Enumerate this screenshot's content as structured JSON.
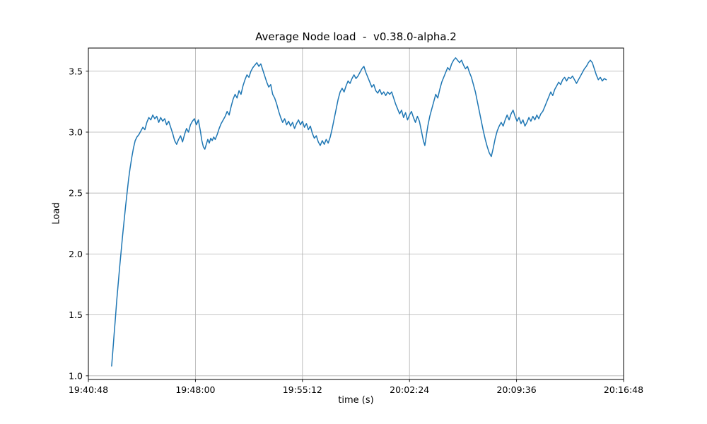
{
  "chart_data": {
    "type": "line",
    "title": "Average Node load  -  v0.38.0-alpha.2",
    "xlabel": "time (s)",
    "ylabel": "Load",
    "xlim": [
      0,
      2160
    ],
    "ylim": [
      0.97,
      3.69
    ],
    "grid": true,
    "x_ticks": [
      {
        "label": "19:40:48",
        "seconds": 0
      },
      {
        "label": "19:48:00",
        "seconds": 432
      },
      {
        "label": "19:55:12",
        "seconds": 864
      },
      {
        "label": "20:02:24",
        "seconds": 1296
      },
      {
        "label": "20:09:36",
        "seconds": 1728
      },
      {
        "label": "20:16:48",
        "seconds": 2160
      }
    ],
    "y_ticks": [
      1.0,
      1.5,
      2.0,
      2.5,
      3.0,
      3.5
    ],
    "colors": {
      "line": "#1f77b4",
      "grid": "#b0b0b0",
      "axis": "#000000",
      "background": "#ffffff"
    },
    "series": [
      {
        "name": "average-node-load",
        "color": "#1f77b4",
        "points": [
          [
            94,
            1.08
          ],
          [
            99,
            1.21
          ],
          [
            104,
            1.34
          ],
          [
            109,
            1.47
          ],
          [
            114,
            1.61
          ],
          [
            120,
            1.75
          ],
          [
            126,
            1.89
          ],
          [
            132,
            2.02
          ],
          [
            138,
            2.15
          ],
          [
            144,
            2.27
          ],
          [
            150,
            2.39
          ],
          [
            156,
            2.5
          ],
          [
            162,
            2.61
          ],
          [
            168,
            2.7
          ],
          [
            175,
            2.79
          ],
          [
            182,
            2.87
          ],
          [
            189,
            2.93
          ],
          [
            196,
            2.96
          ],
          [
            204,
            2.98
          ],
          [
            212,
            3.01
          ],
          [
            220,
            3.04
          ],
          [
            228,
            3.02
          ],
          [
            236,
            3.08
          ],
          [
            244,
            3.12
          ],
          [
            252,
            3.1
          ],
          [
            260,
            3.14
          ],
          [
            268,
            3.11
          ],
          [
            276,
            3.13
          ],
          [
            284,
            3.08
          ],
          [
            292,
            3.12
          ],
          [
            300,
            3.09
          ],
          [
            308,
            3.11
          ],
          [
            316,
            3.06
          ],
          [
            324,
            3.09
          ],
          [
            332,
            3.04
          ],
          [
            340,
            2.99
          ],
          [
            348,
            2.93
          ],
          [
            356,
            2.9
          ],
          [
            364,
            2.94
          ],
          [
            372,
            2.97
          ],
          [
            380,
            2.92
          ],
          [
            388,
            2.98
          ],
          [
            396,
            3.03
          ],
          [
            404,
            3.0
          ],
          [
            412,
            3.06
          ],
          [
            420,
            3.09
          ],
          [
            428,
            3.11
          ],
          [
            436,
            3.06
          ],
          [
            444,
            3.1
          ],
          [
            452,
            3.01
          ],
          [
            458,
            2.93
          ],
          [
            464,
            2.88
          ],
          [
            470,
            2.86
          ],
          [
            476,
            2.9
          ],
          [
            482,
            2.94
          ],
          [
            488,
            2.91
          ],
          [
            494,
            2.95
          ],
          [
            500,
            2.93
          ],
          [
            506,
            2.96
          ],
          [
            512,
            2.94
          ],
          [
            520,
            2.98
          ],
          [
            528,
            3.03
          ],
          [
            536,
            3.07
          ],
          [
            544,
            3.1
          ],
          [
            552,
            3.13
          ],
          [
            560,
            3.17
          ],
          [
            568,
            3.14
          ],
          [
            576,
            3.21
          ],
          [
            584,
            3.27
          ],
          [
            592,
            3.31
          ],
          [
            600,
            3.28
          ],
          [
            608,
            3.34
          ],
          [
            616,
            3.31
          ],
          [
            624,
            3.38
          ],
          [
            632,
            3.43
          ],
          [
            640,
            3.47
          ],
          [
            648,
            3.45
          ],
          [
            656,
            3.5
          ],
          [
            664,
            3.53
          ],
          [
            672,
            3.55
          ],
          [
            680,
            3.57
          ],
          [
            688,
            3.54
          ],
          [
            696,
            3.56
          ],
          [
            704,
            3.51
          ],
          [
            712,
            3.46
          ],
          [
            720,
            3.41
          ],
          [
            728,
            3.37
          ],
          [
            736,
            3.39
          ],
          [
            744,
            3.31
          ],
          [
            752,
            3.28
          ],
          [
            760,
            3.23
          ],
          [
            768,
            3.17
          ],
          [
            776,
            3.12
          ],
          [
            784,
            3.08
          ],
          [
            792,
            3.11
          ],
          [
            800,
            3.06
          ],
          [
            808,
            3.09
          ],
          [
            816,
            3.05
          ],
          [
            824,
            3.08
          ],
          [
            832,
            3.03
          ],
          [
            840,
            3.07
          ],
          [
            848,
            3.1
          ],
          [
            856,
            3.06
          ],
          [
            864,
            3.09
          ],
          [
            872,
            3.04
          ],
          [
            880,
            3.07
          ],
          [
            888,
            3.02
          ],
          [
            896,
            3.05
          ],
          [
            904,
            2.99
          ],
          [
            912,
            2.95
          ],
          [
            920,
            2.97
          ],
          [
            928,
            2.92
          ],
          [
            936,
            2.89
          ],
          [
            944,
            2.93
          ],
          [
            952,
            2.9
          ],
          [
            960,
            2.94
          ],
          [
            968,
            2.91
          ],
          [
            976,
            2.96
          ],
          [
            984,
            3.03
          ],
          [
            992,
            3.11
          ],
          [
            1000,
            3.19
          ],
          [
            1008,
            3.27
          ],
          [
            1016,
            3.33
          ],
          [
            1024,
            3.36
          ],
          [
            1032,
            3.33
          ],
          [
            1040,
            3.38
          ],
          [
            1048,
            3.42
          ],
          [
            1056,
            3.4
          ],
          [
            1064,
            3.44
          ],
          [
            1072,
            3.47
          ],
          [
            1080,
            3.44
          ],
          [
            1088,
            3.46
          ],
          [
            1096,
            3.49
          ],
          [
            1104,
            3.52
          ],
          [
            1112,
            3.54
          ],
          [
            1120,
            3.49
          ],
          [
            1128,
            3.45
          ],
          [
            1136,
            3.41
          ],
          [
            1144,
            3.37
          ],
          [
            1152,
            3.39
          ],
          [
            1160,
            3.34
          ],
          [
            1168,
            3.32
          ],
          [
            1176,
            3.35
          ],
          [
            1184,
            3.31
          ],
          [
            1192,
            3.33
          ],
          [
            1200,
            3.3
          ],
          [
            1208,
            3.33
          ],
          [
            1216,
            3.31
          ],
          [
            1224,
            3.33
          ],
          [
            1232,
            3.28
          ],
          [
            1240,
            3.23
          ],
          [
            1248,
            3.19
          ],
          [
            1256,
            3.15
          ],
          [
            1264,
            3.18
          ],
          [
            1272,
            3.12
          ],
          [
            1280,
            3.16
          ],
          [
            1288,
            3.1
          ],
          [
            1296,
            3.14
          ],
          [
            1304,
            3.17
          ],
          [
            1312,
            3.12
          ],
          [
            1320,
            3.08
          ],
          [
            1328,
            3.13
          ],
          [
            1336,
            3.09
          ],
          [
            1344,
            3.01
          ],
          [
            1352,
            2.93
          ],
          [
            1358,
            2.89
          ],
          [
            1364,
            2.97
          ],
          [
            1370,
            3.05
          ],
          [
            1378,
            3.13
          ],
          [
            1386,
            3.19
          ],
          [
            1394,
            3.25
          ],
          [
            1402,
            3.31
          ],
          [
            1410,
            3.28
          ],
          [
            1418,
            3.35
          ],
          [
            1426,
            3.41
          ],
          [
            1434,
            3.45
          ],
          [
            1442,
            3.49
          ],
          [
            1450,
            3.53
          ],
          [
            1458,
            3.51
          ],
          [
            1466,
            3.56
          ],
          [
            1474,
            3.59
          ],
          [
            1482,
            3.61
          ],
          [
            1490,
            3.59
          ],
          [
            1498,
            3.57
          ],
          [
            1506,
            3.59
          ],
          [
            1514,
            3.55
          ],
          [
            1522,
            3.52
          ],
          [
            1530,
            3.54
          ],
          [
            1538,
            3.49
          ],
          [
            1546,
            3.45
          ],
          [
            1554,
            3.39
          ],
          [
            1562,
            3.33
          ],
          [
            1570,
            3.25
          ],
          [
            1578,
            3.17
          ],
          [
            1586,
            3.09
          ],
          [
            1594,
            3.01
          ],
          [
            1602,
            2.94
          ],
          [
            1610,
            2.88
          ],
          [
            1618,
            2.83
          ],
          [
            1626,
            2.8
          ],
          [
            1634,
            2.87
          ],
          [
            1642,
            2.95
          ],
          [
            1650,
            3.01
          ],
          [
            1658,
            3.05
          ],
          [
            1666,
            3.08
          ],
          [
            1674,
            3.05
          ],
          [
            1682,
            3.1
          ],
          [
            1690,
            3.14
          ],
          [
            1698,
            3.1
          ],
          [
            1706,
            3.15
          ],
          [
            1714,
            3.18
          ],
          [
            1722,
            3.13
          ],
          [
            1730,
            3.09
          ],
          [
            1738,
            3.12
          ],
          [
            1746,
            3.07
          ],
          [
            1754,
            3.1
          ],
          [
            1762,
            3.05
          ],
          [
            1770,
            3.08
          ],
          [
            1778,
            3.12
          ],
          [
            1786,
            3.09
          ],
          [
            1794,
            3.13
          ],
          [
            1802,
            3.1
          ],
          [
            1810,
            3.14
          ],
          [
            1818,
            3.11
          ],
          [
            1826,
            3.15
          ],
          [
            1834,
            3.17
          ],
          [
            1842,
            3.21
          ],
          [
            1850,
            3.25
          ],
          [
            1858,
            3.29
          ],
          [
            1866,
            3.33
          ],
          [
            1874,
            3.3
          ],
          [
            1882,
            3.35
          ],
          [
            1890,
            3.38
          ],
          [
            1898,
            3.41
          ],
          [
            1906,
            3.39
          ],
          [
            1914,
            3.43
          ],
          [
            1922,
            3.45
          ],
          [
            1930,
            3.42
          ],
          [
            1938,
            3.45
          ],
          [
            1946,
            3.44
          ],
          [
            1954,
            3.46
          ],
          [
            1962,
            3.43
          ],
          [
            1970,
            3.4
          ],
          [
            1978,
            3.43
          ],
          [
            1986,
            3.46
          ],
          [
            1994,
            3.49
          ],
          [
            2002,
            3.52
          ],
          [
            2010,
            3.54
          ],
          [
            2018,
            3.57
          ],
          [
            2026,
            3.59
          ],
          [
            2034,
            3.57
          ],
          [
            2042,
            3.52
          ],
          [
            2050,
            3.47
          ],
          [
            2058,
            3.43
          ],
          [
            2066,
            3.45
          ],
          [
            2074,
            3.42
          ],
          [
            2082,
            3.44
          ],
          [
            2090,
            3.43
          ]
        ]
      }
    ]
  }
}
